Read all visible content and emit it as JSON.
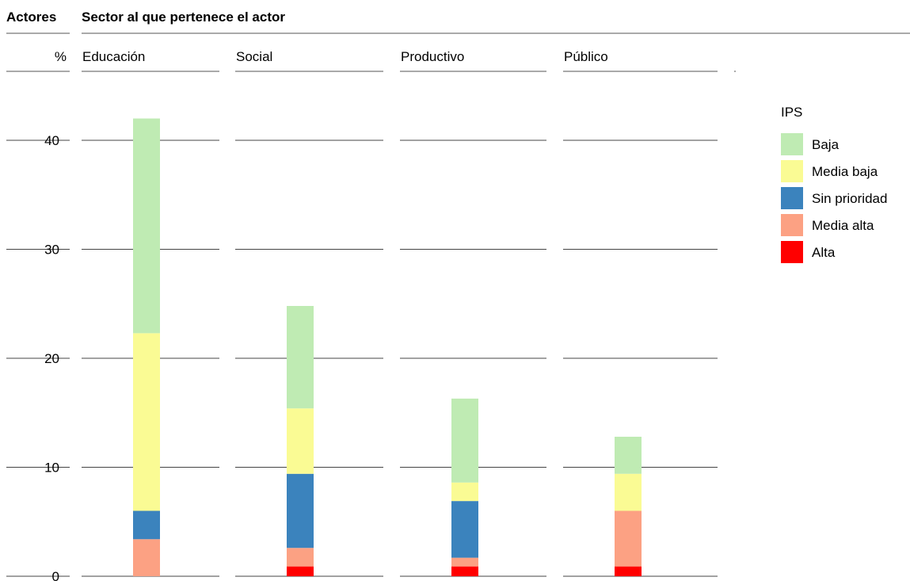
{
  "header": {
    "left_label": "Actores",
    "title": "Sector al que pertenece el actor",
    "unit": "%"
  },
  "legend": {
    "title": "IPS"
  },
  "chart_data": {
    "type": "bar",
    "stacked": true,
    "title": "Sector al que pertenece el actor",
    "ylabel": "%",
    "ylim": [
      0,
      44
    ],
    "yticks": [
      0,
      10,
      20,
      30,
      40
    ],
    "grid": true,
    "legend_position": "right",
    "categories": [
      "Educación",
      "Social",
      "Productivo",
      "Público"
    ],
    "series": [
      {
        "name": "Alta",
        "color": "#ff0000",
        "values": [
          0,
          0.9,
          0.9,
          0.9
        ]
      },
      {
        "name": "Media alta",
        "color": "#fca183",
        "values": [
          3.4,
          1.7,
          0.8,
          5.1
        ]
      },
      {
        "name": "Sin prioridad",
        "color": "#3b83bd",
        "values": [
          2.6,
          6.8,
          5.2,
          0
        ]
      },
      {
        "name": "Media baja",
        "color": "#fafb94",
        "values": [
          16.3,
          6.0,
          1.7,
          3.4
        ]
      },
      {
        "name": "Baja",
        "color": "#bfebb3",
        "values": [
          19.7,
          9.4,
          7.7,
          3.4
        ]
      }
    ],
    "legend_order": [
      "Baja",
      "Media baja",
      "Sin prioridad",
      "Media alta",
      "Alta"
    ]
  }
}
